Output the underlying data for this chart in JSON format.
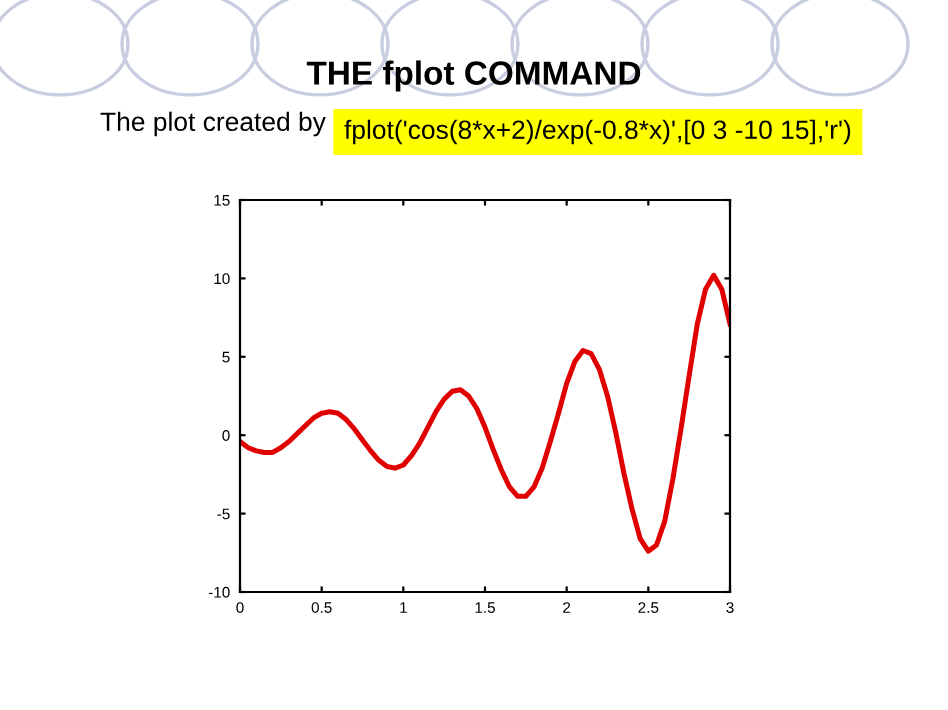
{
  "chart_data": {
    "type": "line",
    "title": "THE fplot COMMAND",
    "annotations": [
      "The plot created by",
      "fplot('cos(8*x+2)/exp(-0.8*x)',[0 3 -10 15],'r')"
    ],
    "x": [
      0,
      0.05,
      0.1,
      0.15,
      0.2,
      0.25,
      0.3,
      0.35,
      0.4,
      0.45,
      0.5,
      0.55,
      0.6,
      0.65,
      0.7,
      0.75,
      0.8,
      0.85,
      0.9,
      0.95,
      1.0,
      1.05,
      1.1,
      1.15,
      1.2,
      1.25,
      1.3,
      1.35,
      1.4,
      1.45,
      1.5,
      1.55,
      1.6,
      1.65,
      1.7,
      1.75,
      1.8,
      1.85,
      1.9,
      1.95,
      2.0,
      2.05,
      2.1,
      2.15,
      2.2,
      2.25,
      2.3,
      2.35,
      2.4,
      2.45,
      2.5,
      2.55,
      2.6,
      2.65,
      2.7,
      2.75,
      2.8,
      2.85,
      2.9,
      2.95,
      3.0
    ],
    "series": [
      {
        "color": "#e00000",
        "values": [
          -0.4,
          -0.8,
          -1.0,
          -1.1,
          -1.1,
          -0.8,
          -0.4,
          0.1,
          0.6,
          1.1,
          1.4,
          1.5,
          1.4,
          1.0,
          0.4,
          -0.3,
          -1.0,
          -1.6,
          -2.0,
          -2.1,
          -1.9,
          -1.3,
          -0.5,
          0.5,
          1.5,
          2.3,
          2.8,
          2.9,
          2.5,
          1.7,
          0.5,
          -0.9,
          -2.2,
          -3.3,
          -3.9,
          -3.9,
          -3.3,
          -2.1,
          -0.4,
          1.4,
          3.3,
          4.7,
          5.4,
          5.2,
          4.2,
          2.5,
          0.2,
          -2.4,
          -4.7,
          -6.6,
          -7.4,
          -7.0,
          -5.5,
          -2.8,
          0.4,
          3.8,
          7.1,
          9.3,
          10.2,
          9.3,
          7.1
        ]
      }
    ],
    "xlim": [
      0,
      3
    ],
    "ylim": [
      -10,
      15
    ],
    "xticks": [
      0,
      0.5,
      1,
      1.5,
      2,
      2.5,
      3
    ],
    "yticks": [
      -10,
      -5,
      0,
      5,
      10,
      15
    ],
    "grid": false,
    "legend": false,
    "marker": "none",
    "line_style": "solid"
  }
}
